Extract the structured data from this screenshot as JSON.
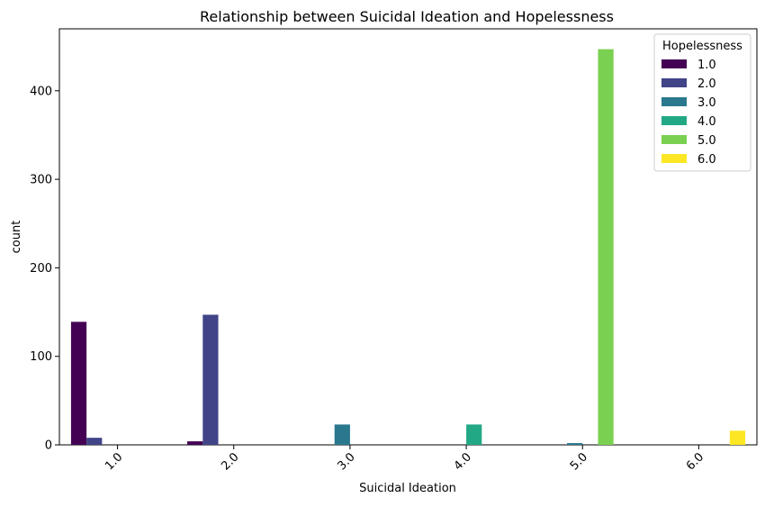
{
  "chart_data": {
    "type": "bar",
    "title": "Relationship between Suicidal Ideation and Hopelessness",
    "xlabel": "Suicidal Ideation",
    "ylabel": "count",
    "categories": [
      "1.0",
      "2.0",
      "3.0",
      "4.0",
      "5.0",
      "6.0"
    ],
    "ylim": [
      0,
      470
    ],
    "yticks": [
      0,
      100,
      200,
      300,
      400
    ],
    "grid": false,
    "legend": {
      "title": "Hopelessness",
      "placement": "top-right"
    },
    "series": [
      {
        "name": "1.0",
        "color": "#440154",
        "values": [
          139,
          4,
          0,
          0,
          0,
          0
        ]
      },
      {
        "name": "2.0",
        "color": "#414487",
        "values": [
          8,
          147,
          0,
          0,
          0,
          0
        ]
      },
      {
        "name": "3.0",
        "color": "#2a788e",
        "values": [
          0,
          0,
          23,
          0,
          2,
          0
        ]
      },
      {
        "name": "4.0",
        "color": "#22a884",
        "values": [
          0,
          0,
          0,
          23,
          0,
          0
        ]
      },
      {
        "name": "5.0",
        "color": "#7ad151",
        "values": [
          0,
          0,
          0,
          0,
          447,
          0
        ]
      },
      {
        "name": "6.0",
        "color": "#fde725",
        "values": [
          0,
          0,
          0,
          0,
          0,
          16
        ]
      }
    ]
  }
}
